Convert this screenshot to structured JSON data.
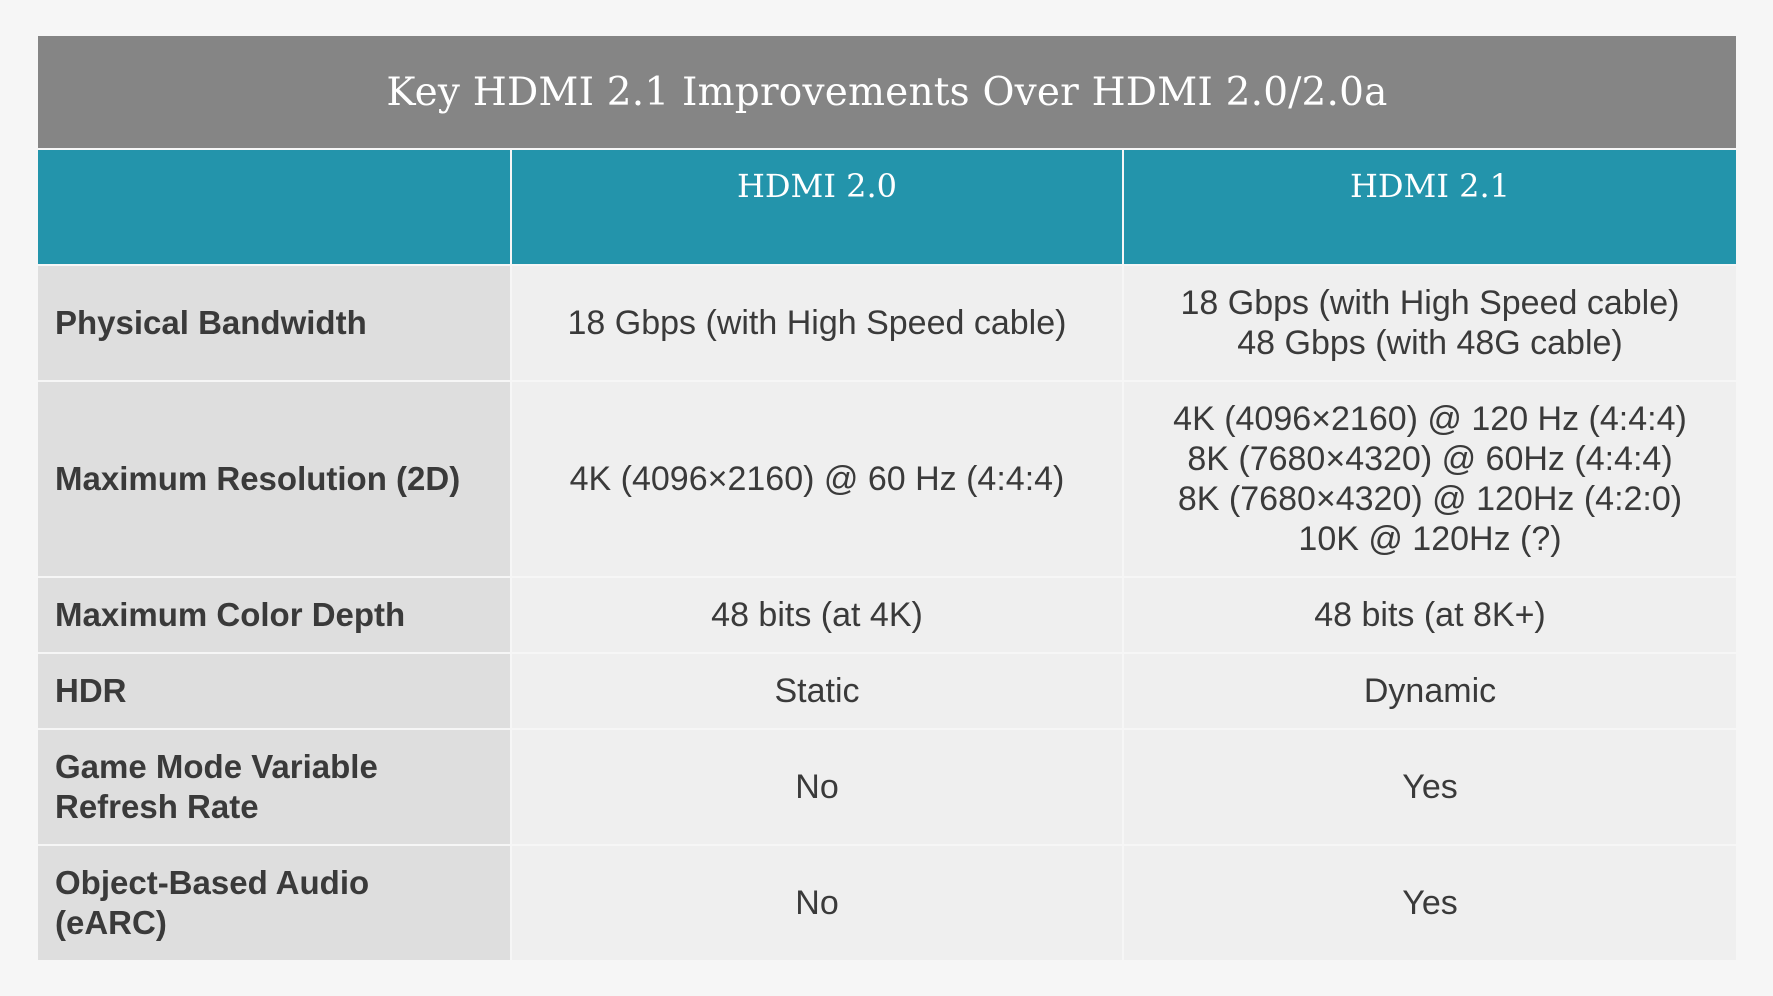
{
  "title": "Key HDMI 2.1 Improvements Over HDMI 2.0/2.0a",
  "columns": [
    "",
    "HDMI 2.0",
    "HDMI 2.1"
  ],
  "rows": [
    {
      "label": "Physical Bandwidth",
      "hdmi20": [
        "18 Gbps (with High Speed cable)"
      ],
      "hdmi21": [
        "18 Gbps (with High Speed cable)",
        "48 Gbps (with 48G cable)"
      ]
    },
    {
      "label": "Maximum Resolution (2D)",
      "hdmi20": [
        "4K (4096×2160) @ 60 Hz (4:4:4)"
      ],
      "hdmi21": [
        "4K (4096×2160) @ 120 Hz (4:4:4)",
        "8K (7680×4320) @ 60Hz (4:4:4)",
        "8K (7680×4320) @ 120Hz (4:2:0)",
        "10K @ 120Hz (?)"
      ]
    },
    {
      "label": "Maximum Color Depth",
      "hdmi20": [
        "48 bits (at 4K)"
      ],
      "hdmi21": [
        "48 bits (at 8K+)"
      ]
    },
    {
      "label": "HDR",
      "hdmi20": [
        "Static"
      ],
      "hdmi21": [
        "Dynamic"
      ]
    },
    {
      "label_lines": [
        "Game Mode Variable",
        "Refresh Rate"
      ],
      "hdmi20": [
        "No"
      ],
      "hdmi21": [
        "Yes"
      ]
    },
    {
      "label_lines": [
        "Object-Based Audio",
        "(eARC)"
      ],
      "hdmi20": [
        "No"
      ],
      "hdmi21": [
        "Yes"
      ]
    }
  ]
}
